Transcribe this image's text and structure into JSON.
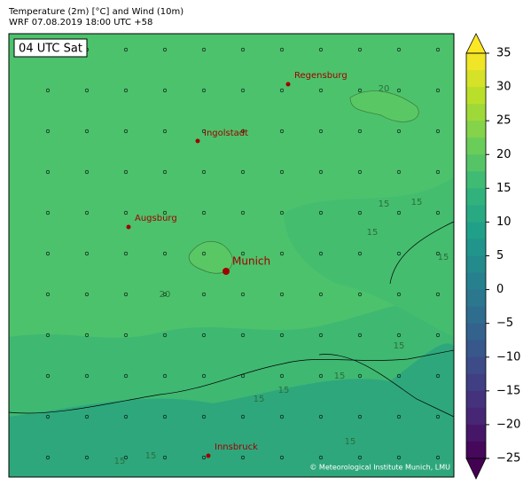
{
  "map": {
    "title": "Temperature (2m) [°C] and Wind (10m)",
    "subtitle": "WRF 07.08.2019 18:00 UTC +58",
    "time_label": "04 UTC Sat",
    "cities": [
      {
        "name": "Regensburg"
      },
      {
        "name": "Ingolstadt"
      },
      {
        "name": "Augsburg"
      },
      {
        "name": "Munich"
      },
      {
        "name": "Innsbruck"
      }
    ],
    "contour_labels": [
      20,
      15,
      15,
      15,
      15,
      20,
      15,
      15,
      15,
      15,
      15,
      15,
      15
    ],
    "credit": "© Meteorological Institute Munich, LMU",
    "colorbar": {
      "lim": [
        -25,
        35
      ],
      "ticks": [
        {
          "value": -25,
          "label": "−25"
        },
        {
          "value": -20,
          "label": "−20"
        },
        {
          "value": -15,
          "label": "−15"
        },
        {
          "value": -10,
          "label": "−10"
        },
        {
          "value": -5,
          "label": "−5"
        },
        0,
        5,
        10,
        15,
        20,
        25,
        30,
        35
      ],
      "colormap": [
        "#440154",
        "#482878",
        "#3e4989",
        "#31688e",
        "#26828e",
        "#1f9e89",
        "#35b779",
        "#6ece58",
        "#b5de2b",
        "#fde725"
      ]
    }
  }
}
